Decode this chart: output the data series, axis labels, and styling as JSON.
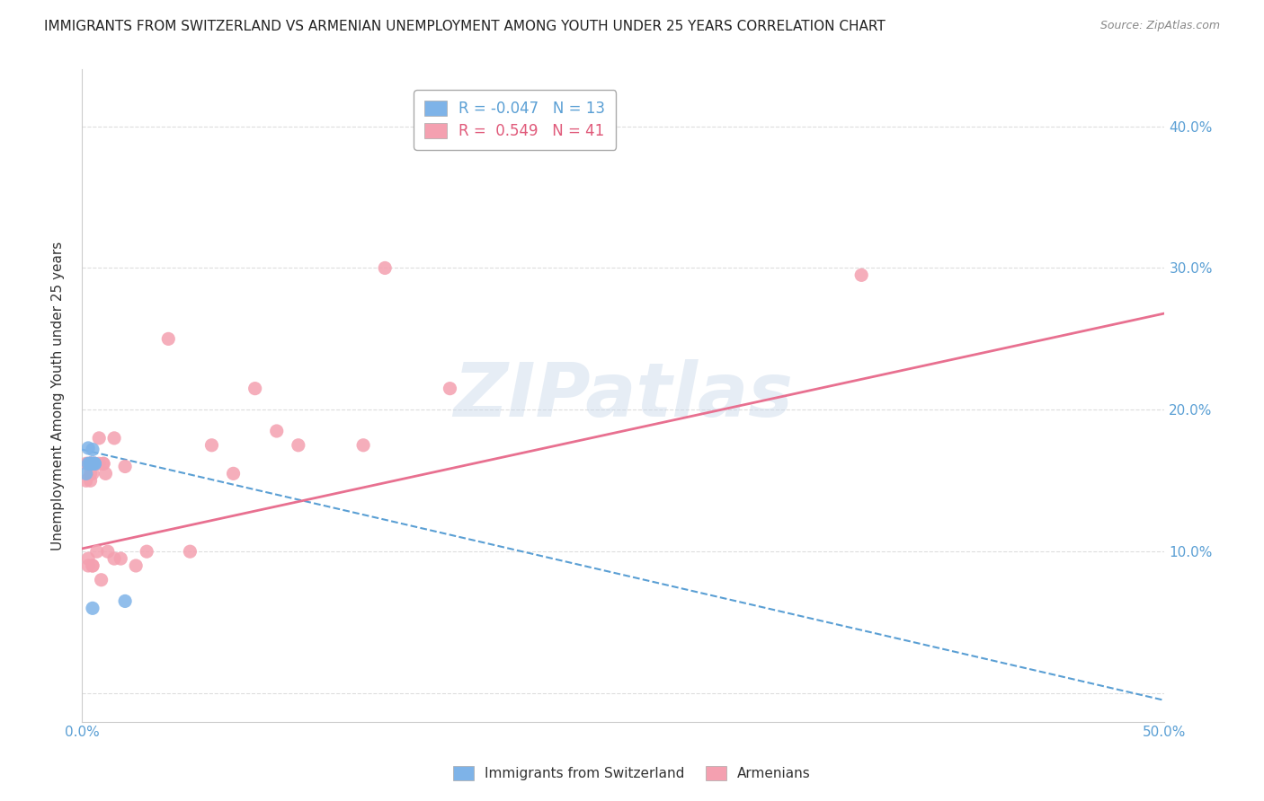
{
  "title": "IMMIGRANTS FROM SWITZERLAND VS ARMENIAN UNEMPLOYMENT AMONG YOUTH UNDER 25 YEARS CORRELATION CHART",
  "source": "Source: ZipAtlas.com",
  "ylabel": "Unemployment Among Youth under 25 years",
  "xlim": [
    0.0,
    0.5
  ],
  "ylim": [
    -0.02,
    0.44
  ],
  "yticks": [
    0.0,
    0.1,
    0.2,
    0.3,
    0.4
  ],
  "ytick_labels": [
    "",
    "10.0%",
    "20.0%",
    "30.0%",
    "40.0%"
  ],
  "background_color": "#ffffff",
  "swiss_R": -0.047,
  "swiss_N": 13,
  "armenian_R": 0.549,
  "armenian_N": 41,
  "swiss_color": "#7eb3e8",
  "armenian_color": "#f4a0b0",
  "swiss_line_color": "#5a9fd4",
  "armenian_line_color": "#e87090",
  "swiss_line_y0": 0.172,
  "swiss_line_y1": -0.005,
  "armenian_line_y0": 0.102,
  "armenian_line_y1": 0.268,
  "swiss_scatter_x": [
    0.002,
    0.003,
    0.003,
    0.004,
    0.004,
    0.004,
    0.005,
    0.005,
    0.005,
    0.005,
    0.006,
    0.006,
    0.02
  ],
  "swiss_scatter_y": [
    0.155,
    0.173,
    0.162,
    0.162,
    0.162,
    0.162,
    0.172,
    0.162,
    0.162,
    0.06,
    0.162,
    0.162,
    0.065
  ],
  "armenian_scatter_x": [
    0.002,
    0.002,
    0.003,
    0.003,
    0.003,
    0.004,
    0.004,
    0.004,
    0.004,
    0.004,
    0.005,
    0.005,
    0.005,
    0.005,
    0.006,
    0.006,
    0.007,
    0.008,
    0.008,
    0.009,
    0.01,
    0.01,
    0.011,
    0.012,
    0.015,
    0.015,
    0.018,
    0.02,
    0.025,
    0.03,
    0.04,
    0.05,
    0.06,
    0.07,
    0.08,
    0.09,
    0.1,
    0.13,
    0.14,
    0.17,
    0.36
  ],
  "armenian_scatter_y": [
    0.15,
    0.162,
    0.09,
    0.095,
    0.162,
    0.15,
    0.155,
    0.162,
    0.162,
    0.162,
    0.09,
    0.09,
    0.155,
    0.162,
    0.162,
    0.162,
    0.1,
    0.162,
    0.18,
    0.08,
    0.162,
    0.162,
    0.155,
    0.1,
    0.18,
    0.095,
    0.095,
    0.16,
    0.09,
    0.1,
    0.25,
    0.1,
    0.175,
    0.155,
    0.215,
    0.185,
    0.175,
    0.175,
    0.3,
    0.215,
    0.295
  ]
}
